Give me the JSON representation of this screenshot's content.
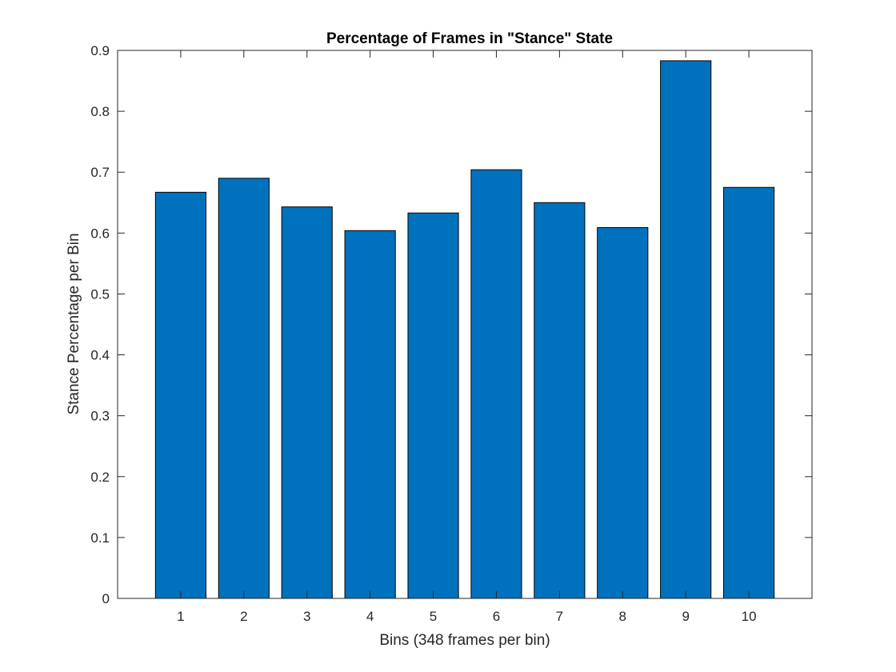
{
  "chart_data": {
    "type": "bar",
    "title": "Percentage of Frames in \"Stance\" State",
    "xlabel": "Bins (348 frames per bin)",
    "ylabel": "Stance Percentage per Bin",
    "categories": [
      "1",
      "2",
      "3",
      "4",
      "5",
      "6",
      "7",
      "8",
      "9",
      "10"
    ],
    "values": [
      0.667,
      0.69,
      0.643,
      0.604,
      0.633,
      0.704,
      0.65,
      0.609,
      0.883,
      0.675
    ],
    "ylim": [
      0,
      0.9
    ],
    "yticks": [
      "0",
      "0.1",
      "0.2",
      "0.3",
      "0.4",
      "0.5",
      "0.6",
      "0.7",
      "0.8",
      "0.9"
    ],
    "xlim": [
      0,
      11
    ],
    "grid": false,
    "bar_color": "#0072bd",
    "edge_color": "#000000"
  }
}
